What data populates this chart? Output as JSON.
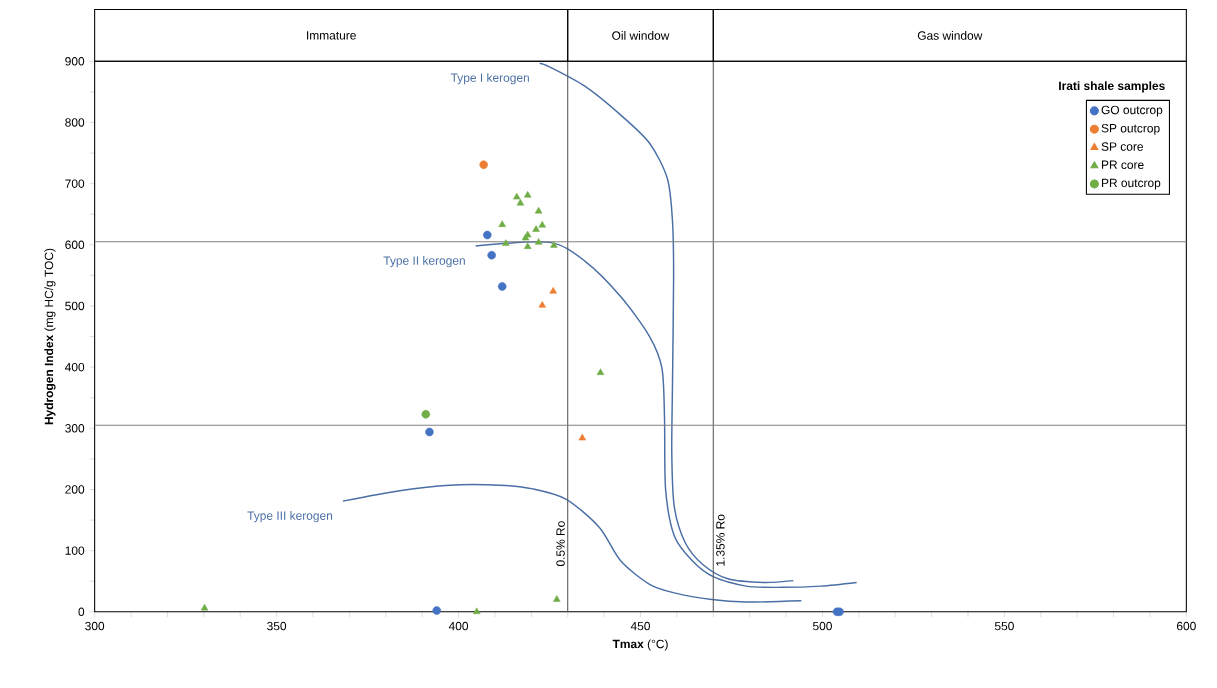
{
  "chart_data": {
    "type": "scatter",
    "xlabel": "**Tmax** (°C)",
    "ylabel": "**Hydrogen Index** (mg HC/g TOC)",
    "legend_title": "Irati shale samples",
    "xlim": [
      300,
      600
    ],
    "xticks": [
      300,
      350,
      400,
      450,
      500,
      550,
      600
    ],
    "ylim": [
      0,
      900
    ],
    "yticks": [
      0,
      100,
      200,
      300,
      400,
      500,
      600,
      700,
      800,
      900
    ],
    "grid": false,
    "legend": "top right",
    "series": [
      {
        "name": "GO outcrop",
        "color": "#4472c4",
        "marker": "circle",
        "x": [
          407.9,
          409.1,
          412,
          392,
          393.4,
          394,
          504,
          504.7
        ],
        "values": [
          616,
          583,
          532,
          294,
          null,
          2,
          0,
          0
        ]
      },
      {
        "name": "SP outcrop",
        "color": "#ed7d31",
        "marker": "circle",
        "x": [
          406.9
        ],
        "values": [
          731
        ]
      },
      {
        "name": "SP core",
        "color": "#ed7d31",
        "marker": "triangle",
        "x": [
          426,
          423,
          434
        ],
        "values": [
          524,
          501,
          284
        ]
      },
      {
        "name": "PR core",
        "color": "#70ad47",
        "marker": "triangle",
        "x": [
          416,
          419,
          417,
          422,
          412,
          423,
          421.3,
          419,
          418.4,
          413,
          419,
          422,
          426.2,
          439,
          427,
          405,
          330.2
        ],
        "values": [
          678,
          681,
          668,
          655,
          633,
          632,
          625,
          616,
          611,
          602,
          597,
          604,
          599,
          391,
          20,
          0,
          6
        ]
      },
      {
        "name": "PR outcrop",
        "color": "#70ad47",
        "marker": "circle",
        "x": [
          391
        ],
        "values": [
          323
        ]
      },
      {
        "name": "Type I kerogen",
        "type": "line",
        "color": "#4a6fa5",
        "marker": "none",
        "x": [
          422.3,
          425,
          434.8,
          444.6,
          452.5,
          457.4,
          458.8,
          459.1,
          458.8,
          458.6,
          459.3,
          462.3,
          467.2,
          474,
          483.9,
          492
        ],
        "values": [
          897,
          891,
          859,
          812,
          766,
          708,
          638,
          550,
          376,
          258,
          171,
          113,
          77,
          54,
          48,
          51
        ]
      },
      {
        "name": "Type II kerogen",
        "type": "line",
        "color": "#4a6fa5",
        "marker": "none",
        "x": [
          404.7,
          425,
          434.8,
          444.6,
          452.5,
          455.9,
          456.6,
          456.9,
          459.3,
          464.3,
          470.1,
          479,
          488.7,
          499.5,
          509.4
        ],
        "values": [
          598,
          604,
          573,
          515,
          450,
          398,
          317,
          200,
          124,
          83,
          57,
          42,
          40,
          42,
          48
        ]
      },
      {
        "name": "Type III kerogen",
        "type": "line",
        "color": "#4a6fa5",
        "marker": "none",
        "x": [
          368.2,
          383.8,
          397.5,
          411.3,
          420.4,
          429.6,
          438.7,
          444.6,
          452.5,
          459.3,
          469.6,
          479,
          494.2
        ],
        "values": [
          181,
          198,
          207,
          207,
          201,
          184,
          138,
          83,
          45,
          31,
          20,
          16,
          18
        ]
      }
    ],
    "ref_lines": [
      {
        "axis": "x",
        "value": 430,
        "label": "0.5% Ro",
        "color": "#595959"
      },
      {
        "axis": "x",
        "value": 470,
        "label": "1.35% Ro",
        "color": "#595959"
      },
      {
        "axis": "y",
        "value": 605,
        "color": "#808080"
      },
      {
        "axis": "y",
        "value": 305,
        "color": "#808080"
      }
    ],
    "annotations": [
      "Immature",
      "Oil window",
      "Gas window"
    ]
  }
}
